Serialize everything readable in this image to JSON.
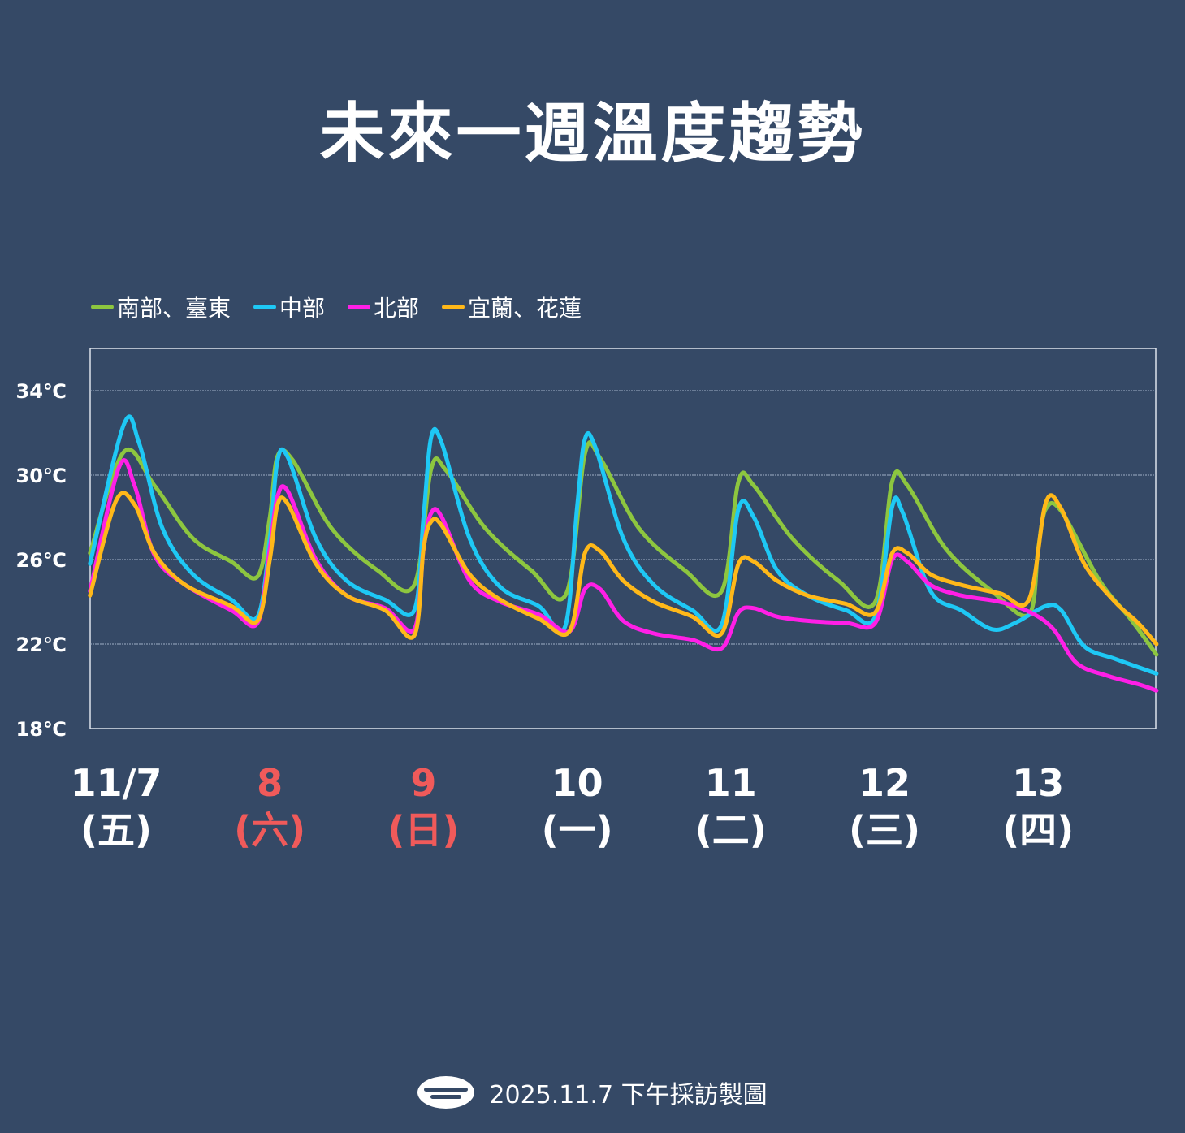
{
  "title": "未來一週溫度趨勢",
  "colors": {
    "background": "#354966",
    "weekday": "#ffffff",
    "weekend": "#f05a5a",
    "gridline": "#9fb0c6",
    "frame": "#dde3ec"
  },
  "chart_data": {
    "type": "line",
    "y_unit": "℃",
    "ylim": [
      18,
      36
    ],
    "yticks": [
      "18℃",
      "22℃",
      "26℃",
      "30℃",
      "34℃"
    ],
    "ytick_values": [
      18,
      22,
      26,
      30,
      34
    ],
    "grid": true,
    "legend_position": "top-left",
    "x_labels": [
      {
        "date": "11/7",
        "weekday": "(五)",
        "weekend": false
      },
      {
        "date": "8",
        "weekday": "(六)",
        "weekend": true
      },
      {
        "date": "9",
        "weekday": "(日)",
        "weekend": true
      },
      {
        "date": "10",
        "weekday": "(一)",
        "weekend": false
      },
      {
        "date": "11",
        "weekday": "(二)",
        "weekend": false
      },
      {
        "date": "12",
        "weekday": "(三)",
        "weekend": false
      },
      {
        "date": "13",
        "weekday": "(四)",
        "weekend": false
      }
    ],
    "x_domain_days": [
      -0.17,
      6.77
    ],
    "series": [
      {
        "name": "南部、臺東",
        "color": "#8dc63f",
        "points": [
          [
            -0.17,
            26.3
          ],
          [
            0.05,
            31.1
          ],
          [
            0.25,
            29.5
          ],
          [
            0.5,
            27.0
          ],
          [
            0.75,
            25.9
          ],
          [
            0.92,
            25.2
          ],
          [
            1.0,
            28.0
          ],
          [
            1.05,
            30.9
          ],
          [
            1.15,
            30.7
          ],
          [
            1.4,
            27.5
          ],
          [
            1.7,
            25.5
          ],
          [
            1.94,
            24.8
          ],
          [
            2.05,
            30.3
          ],
          [
            2.15,
            30.2
          ],
          [
            2.4,
            27.5
          ],
          [
            2.7,
            25.5
          ],
          [
            2.93,
            24.4
          ],
          [
            3.05,
            31.0
          ],
          [
            3.15,
            30.8
          ],
          [
            3.4,
            27.5
          ],
          [
            3.7,
            25.5
          ],
          [
            3.94,
            24.5
          ],
          [
            4.05,
            29.7
          ],
          [
            4.15,
            29.5
          ],
          [
            4.4,
            27.0
          ],
          [
            4.7,
            25.0
          ],
          [
            4.94,
            24.0
          ],
          [
            5.05,
            29.7
          ],
          [
            5.15,
            29.5
          ],
          [
            5.4,
            26.5
          ],
          [
            5.7,
            24.5
          ],
          [
            5.94,
            23.4
          ],
          [
            6.0,
            26.5
          ],
          [
            6.05,
            28.4
          ],
          [
            6.15,
            28.3
          ],
          [
            6.4,
            25.0
          ],
          [
            6.6,
            23.2
          ],
          [
            6.77,
            21.5
          ]
        ]
      },
      {
        "name": "中部",
        "color": "#1ec8f5",
        "points": [
          [
            -0.17,
            25.8
          ],
          [
            0.05,
            32.4
          ],
          [
            0.15,
            31.5
          ],
          [
            0.3,
            27.5
          ],
          [
            0.5,
            25.3
          ],
          [
            0.75,
            24.1
          ],
          [
            0.92,
            23.3
          ],
          [
            1.0,
            27.0
          ],
          [
            1.05,
            30.7
          ],
          [
            1.12,
            30.8
          ],
          [
            1.3,
            27.0
          ],
          [
            1.5,
            25.0
          ],
          [
            1.75,
            24.1
          ],
          [
            1.94,
            23.6
          ],
          [
            2.0,
            28.0
          ],
          [
            2.05,
            31.8
          ],
          [
            2.12,
            31.5
          ],
          [
            2.3,
            27.0
          ],
          [
            2.5,
            24.7
          ],
          [
            2.75,
            23.8
          ],
          [
            2.92,
            22.8
          ],
          [
            3.0,
            28.5
          ],
          [
            3.05,
            31.7
          ],
          [
            3.12,
            31.3
          ],
          [
            3.3,
            27.0
          ],
          [
            3.5,
            24.8
          ],
          [
            3.75,
            23.6
          ],
          [
            3.94,
            22.9
          ],
          [
            4.05,
            28.4
          ],
          [
            4.15,
            28.0
          ],
          [
            4.3,
            25.5
          ],
          [
            4.5,
            24.3
          ],
          [
            4.75,
            23.6
          ],
          [
            4.94,
            23.3
          ],
          [
            5.05,
            28.5
          ],
          [
            5.12,
            28.2
          ],
          [
            5.3,
            24.5
          ],
          [
            5.5,
            23.6
          ],
          [
            5.7,
            22.7
          ],
          [
            5.85,
            23.0
          ],
          [
            6.05,
            23.8
          ],
          [
            6.15,
            23.6
          ],
          [
            6.3,
            21.9
          ],
          [
            6.5,
            21.3
          ],
          [
            6.77,
            20.6
          ]
        ]
      },
      {
        "name": "北部",
        "color": "#ff1fe6",
        "points": [
          [
            -0.17,
            24.5
          ],
          [
            0.02,
            30.4
          ],
          [
            0.12,
            29.5
          ],
          [
            0.25,
            26.2
          ],
          [
            0.45,
            24.8
          ],
          [
            0.75,
            23.6
          ],
          [
            0.92,
            23.0
          ],
          [
            1.0,
            26.5
          ],
          [
            1.05,
            29.0
          ],
          [
            1.12,
            29.2
          ],
          [
            1.3,
            26.0
          ],
          [
            1.5,
            24.3
          ],
          [
            1.75,
            23.7
          ],
          [
            1.94,
            22.7
          ],
          [
            2.0,
            26.5
          ],
          [
            2.05,
            28.2
          ],
          [
            2.12,
            28.0
          ],
          [
            2.3,
            25.0
          ],
          [
            2.5,
            24.0
          ],
          [
            2.75,
            23.4
          ],
          [
            2.95,
            22.6
          ],
          [
            3.05,
            24.6
          ],
          [
            3.15,
            24.6
          ],
          [
            3.3,
            23.1
          ],
          [
            3.5,
            22.5
          ],
          [
            3.75,
            22.2
          ],
          [
            3.94,
            21.8
          ],
          [
            4.05,
            23.5
          ],
          [
            4.15,
            23.7
          ],
          [
            4.3,
            23.3
          ],
          [
            4.5,
            23.1
          ],
          [
            4.75,
            23.0
          ],
          [
            4.94,
            23.0
          ],
          [
            5.05,
            26.0
          ],
          [
            5.15,
            25.9
          ],
          [
            5.3,
            24.8
          ],
          [
            5.5,
            24.3
          ],
          [
            5.75,
            24.0
          ],
          [
            5.95,
            23.5
          ],
          [
            6.1,
            22.7
          ],
          [
            6.25,
            21.1
          ],
          [
            6.45,
            20.5
          ],
          [
            6.65,
            20.1
          ],
          [
            6.77,
            19.8
          ]
        ]
      },
      {
        "name": "宜蘭、花蓮",
        "color": "#ffb819",
        "points": [
          [
            -0.17,
            24.3
          ],
          [
            0.0,
            28.8
          ],
          [
            0.12,
            28.6
          ],
          [
            0.25,
            26.3
          ],
          [
            0.45,
            24.8
          ],
          [
            0.75,
            23.8
          ],
          [
            0.92,
            23.1
          ],
          [
            1.0,
            26.0
          ],
          [
            1.05,
            28.6
          ],
          [
            1.12,
            28.6
          ],
          [
            1.3,
            25.8
          ],
          [
            1.5,
            24.3
          ],
          [
            1.75,
            23.6
          ],
          [
            1.94,
            22.4
          ],
          [
            2.0,
            26.5
          ],
          [
            2.05,
            27.8
          ],
          [
            2.12,
            27.6
          ],
          [
            2.3,
            25.3
          ],
          [
            2.5,
            24.1
          ],
          [
            2.75,
            23.2
          ],
          [
            2.95,
            22.6
          ],
          [
            3.05,
            26.3
          ],
          [
            3.15,
            26.4
          ],
          [
            3.3,
            25.0
          ],
          [
            3.5,
            24.0
          ],
          [
            3.75,
            23.3
          ],
          [
            3.94,
            22.5
          ],
          [
            4.05,
            25.8
          ],
          [
            4.15,
            25.9
          ],
          [
            4.3,
            25.0
          ],
          [
            4.5,
            24.3
          ],
          [
            4.75,
            23.9
          ],
          [
            4.94,
            23.5
          ],
          [
            5.05,
            26.3
          ],
          [
            5.15,
            26.3
          ],
          [
            5.3,
            25.3
          ],
          [
            5.5,
            24.8
          ],
          [
            5.75,
            24.4
          ],
          [
            5.94,
            24.1
          ],
          [
            6.05,
            28.7
          ],
          [
            6.15,
            28.4
          ],
          [
            6.3,
            25.8
          ],
          [
            6.5,
            24.0
          ],
          [
            6.65,
            23.0
          ],
          [
            6.77,
            22.0
          ]
        ]
      }
    ]
  },
  "footer": {
    "logo_icon": "cwa-logo-icon",
    "text": "2025.11.7 下午採訪製圖"
  }
}
